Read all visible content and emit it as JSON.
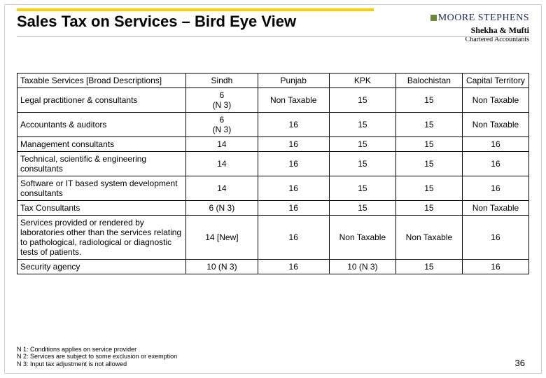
{
  "title": "Sales Tax on Services – Bird Eye View",
  "logo": {
    "brand": "MOORE STEPHENS",
    "line1": "Shekha & Mufti",
    "line2": "Chartered Accountants"
  },
  "columns": [
    "Taxable Services [Broad Descriptions]",
    "Sindh",
    "Punjab",
    "KPK",
    "Balochistan",
    "Capital Territory"
  ],
  "rows": [
    {
      "desc": "Legal practitioner & consultants",
      "cells": [
        "6\n(N 3)",
        "Non Taxable",
        "15",
        "15",
        "Non Taxable"
      ]
    },
    {
      "desc": "Accountants & auditors",
      "cells": [
        "6\n(N 3)",
        "16",
        "15",
        "15",
        "Non Taxable"
      ]
    },
    {
      "desc": "Management consultants",
      "cells": [
        "14",
        "16",
        "15",
        "15",
        "16"
      ]
    },
    {
      "desc": "Technical, scientific & engineering consultants",
      "cells": [
        "14",
        "16",
        "15",
        "15",
        "16"
      ]
    },
    {
      "desc": "Software or IT based system development consultants",
      "cells": [
        "14",
        "16",
        "15",
        "15",
        "16"
      ]
    },
    {
      "desc": "Tax Consultants",
      "cells": [
        "6 (N 3)",
        "16",
        "15",
        "15",
        "Non Taxable"
      ]
    },
    {
      "desc": "Services provided or rendered by laboratories other than the services relating to pathological, radiological or diagnostic tests of patients.",
      "cells": [
        "14 [New]",
        "16",
        "Non Taxable",
        "Non Taxable",
        "16"
      ]
    },
    {
      "desc": "Security agency",
      "cells": [
        "10 (N 3)",
        "16",
        "10 (N 3)",
        "15",
        "16"
      ]
    }
  ],
  "footnotes": [
    "N 1: Conditions applies on service provider",
    "N 2: Services are subject to some exclusion or exemption",
    "N 3: Input tax adjustment is not allowed"
  ],
  "page_number": "36"
}
